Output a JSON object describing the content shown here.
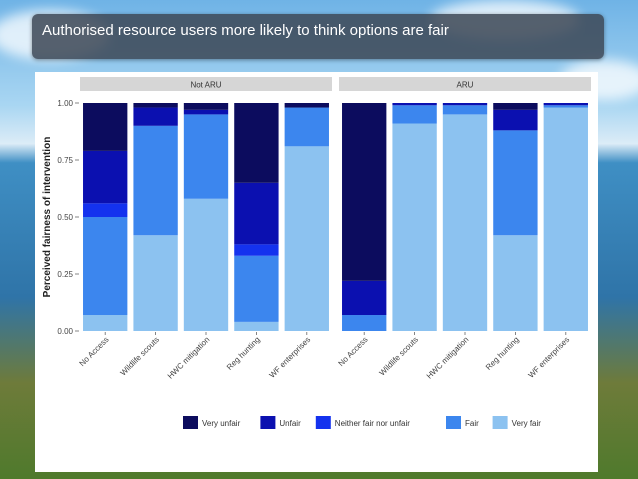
{
  "slide": {
    "title": "Authorised resource users more likely to think options are fair"
  },
  "colors": {
    "Very unfair": "#0c0c5e",
    "Unfair": "#0b10b0",
    "Neither fair nor unfair": "#1432ee",
    "Fair": "#3c86ee",
    "Very fair": "#8cc2f0",
    "strip": "#d6d6d6"
  },
  "chart_data": {
    "type": "bar",
    "stacked": true,
    "ylabel": "Perceived fairness of intervention",
    "xlabel": "",
    "ylim": [
      0,
      1
    ],
    "yticks": [
      "0.00",
      "0.25",
      "0.50",
      "0.75",
      "1.00"
    ],
    "categories": [
      "No Access",
      "Wildlife scouts",
      "HWC mitigation",
      "Reg hunting",
      "WF enterprises"
    ],
    "legend_position": "bottom",
    "legend": [
      "Very unfair",
      "Unfair",
      "Neither fair nor unfair",
      "Fair",
      "Very fair"
    ],
    "panels": [
      {
        "name": "Not ARU",
        "series": [
          {
            "name": "Very fair",
            "values": [
              0.07,
              0.42,
              0.58,
              0.04,
              0.81
            ]
          },
          {
            "name": "Fair",
            "values": [
              0.43,
              0.48,
              0.37,
              0.29,
              0.17
            ]
          },
          {
            "name": "Neither fair nor unfair",
            "values": [
              0.06,
              0.0,
              0.0,
              0.05,
              0.0
            ]
          },
          {
            "name": "Unfair",
            "values": [
              0.23,
              0.08,
              0.02,
              0.27,
              0.0
            ]
          },
          {
            "name": "Very unfair",
            "values": [
              0.21,
              0.02,
              0.03,
              0.35,
              0.02
            ]
          }
        ]
      },
      {
        "name": "ARU",
        "series": [
          {
            "name": "Very fair",
            "values": [
              0.0,
              0.91,
              0.95,
              0.42,
              0.98
            ]
          },
          {
            "name": "Fair",
            "values": [
              0.07,
              0.08,
              0.04,
              0.46,
              0.01
            ]
          },
          {
            "name": "Neither fair nor unfair",
            "values": [
              0.0,
              0.0,
              0.0,
              0.0,
              0.0
            ]
          },
          {
            "name": "Unfair",
            "values": [
              0.15,
              0.01,
              0.01,
              0.09,
              0.01
            ]
          },
          {
            "name": "Very unfair",
            "values": [
              0.78,
              0.0,
              0.0,
              0.03,
              0.0
            ]
          }
        ]
      }
    ]
  }
}
